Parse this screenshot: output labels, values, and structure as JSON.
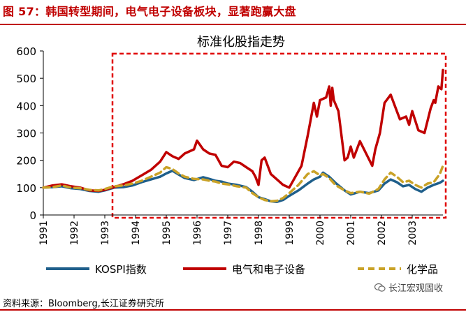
{
  "figure": {
    "caption": "图 57：韩国转型期间，电气电子设备板块，显著跑赢大盘",
    "source": "资料来源：Bloomberg,长江证券研究所",
    "watermark": "长江宏观固收"
  },
  "chart_data": {
    "type": "line",
    "title": "标准化股指走势",
    "xlabel": "",
    "ylabel": "",
    "ylim": [
      0,
      600
    ],
    "yticks": [
      0,
      100,
      200,
      300,
      400,
      500,
      600
    ],
    "xlim": [
      1991,
      2004
    ],
    "xticks": [
      "1991",
      "1992",
      "1993",
      "1994",
      "1995",
      "1996",
      "1997",
      "1998",
      "1999",
      "2000",
      "2001",
      "2002",
      "2003"
    ],
    "grid": false,
    "legend_position": "bottom",
    "highlight_box": {
      "x_range": [
        1993.25,
        2004
      ],
      "y_range": [
        0,
        590
      ],
      "color": "#e00000",
      "style": "dashed"
    },
    "series": [
      {
        "name": "KOSPI指数",
        "color": "#1f5f8b",
        "style": "solid",
        "points": [
          [
            1991.0,
            100
          ],
          [
            1991.3,
            102
          ],
          [
            1991.6,
            105
          ],
          [
            1991.9,
            98
          ],
          [
            1992.2,
            95
          ],
          [
            1992.5,
            88
          ],
          [
            1992.8,
            85
          ],
          [
            1993.0,
            90
          ],
          [
            1993.3,
            100
          ],
          [
            1993.6,
            102
          ],
          [
            1993.9,
            108
          ],
          [
            1994.2,
            120
          ],
          [
            1994.5,
            130
          ],
          [
            1994.8,
            140
          ],
          [
            1995.0,
            152
          ],
          [
            1995.2,
            162
          ],
          [
            1995.4,
            148
          ],
          [
            1995.6,
            135
          ],
          [
            1995.9,
            128
          ],
          [
            1996.2,
            138
          ],
          [
            1996.4,
            132
          ],
          [
            1996.6,
            125
          ],
          [
            1996.8,
            122
          ],
          [
            1997.0,
            115
          ],
          [
            1997.3,
            110
          ],
          [
            1997.6,
            102
          ],
          [
            1997.8,
            85
          ],
          [
            1998.0,
            65
          ],
          [
            1998.2,
            58
          ],
          [
            1998.4,
            50
          ],
          [
            1998.6,
            48
          ],
          [
            1998.8,
            55
          ],
          [
            1999.0,
            70
          ],
          [
            1999.3,
            90
          ],
          [
            1999.6,
            115
          ],
          [
            1999.8,
            130
          ],
          [
            2000.0,
            140
          ],
          [
            2000.1,
            155
          ],
          [
            2000.3,
            140
          ],
          [
            2000.5,
            118
          ],
          [
            2000.8,
            90
          ],
          [
            2001.0,
            75
          ],
          [
            2001.3,
            85
          ],
          [
            2001.6,
            80
          ],
          [
            2001.9,
            90
          ],
          [
            2002.1,
            115
          ],
          [
            2002.3,
            130
          ],
          [
            2002.5,
            120
          ],
          [
            2002.7,
            105
          ],
          [
            2002.9,
            110
          ],
          [
            2003.1,
            95
          ],
          [
            2003.3,
            85
          ],
          [
            2003.5,
            100
          ],
          [
            2003.7,
            110
          ],
          [
            2003.9,
            118
          ],
          [
            2004.0,
            125
          ]
        ]
      },
      {
        "name": "电气和电子设备",
        "color": "#c00000",
        "style": "solid",
        "points": [
          [
            1991.0,
            100
          ],
          [
            1991.3,
            108
          ],
          [
            1991.6,
            112
          ],
          [
            1991.9,
            105
          ],
          [
            1992.2,
            100
          ],
          [
            1992.5,
            90
          ],
          [
            1992.8,
            88
          ],
          [
            1993.0,
            92
          ],
          [
            1993.3,
            102
          ],
          [
            1993.6,
            112
          ],
          [
            1993.9,
            125
          ],
          [
            1994.2,
            145
          ],
          [
            1994.5,
            165
          ],
          [
            1994.8,
            195
          ],
          [
            1995.0,
            230
          ],
          [
            1995.2,
            215
          ],
          [
            1995.4,
            205
          ],
          [
            1995.6,
            225
          ],
          [
            1995.9,
            240
          ],
          [
            1996.0,
            272
          ],
          [
            1996.2,
            240
          ],
          [
            1996.4,
            225
          ],
          [
            1996.6,
            220
          ],
          [
            1996.8,
            180
          ],
          [
            1997.0,
            175
          ],
          [
            1997.2,
            195
          ],
          [
            1997.4,
            190
          ],
          [
            1997.6,
            175
          ],
          [
            1997.8,
            160
          ],
          [
            1997.9,
            140
          ],
          [
            1998.0,
            110
          ],
          [
            1998.1,
            200
          ],
          [
            1998.2,
            210
          ],
          [
            1998.4,
            150
          ],
          [
            1998.6,
            130
          ],
          [
            1998.8,
            110
          ],
          [
            1999.0,
            100
          ],
          [
            1999.2,
            140
          ],
          [
            1999.4,
            180
          ],
          [
            1999.6,
            290
          ],
          [
            1999.8,
            410
          ],
          [
            1999.9,
            360
          ],
          [
            2000.0,
            420
          ],
          [
            2000.2,
            430
          ],
          [
            2000.3,
            470
          ],
          [
            2000.35,
            400
          ],
          [
            2000.4,
            465
          ],
          [
            2000.45,
            420
          ],
          [
            2000.6,
            380
          ],
          [
            2000.8,
            200
          ],
          [
            2000.9,
            210
          ],
          [
            2001.0,
            250
          ],
          [
            2001.1,
            210
          ],
          [
            2001.3,
            270
          ],
          [
            2001.5,
            225
          ],
          [
            2001.7,
            180
          ],
          [
            2001.8,
            240
          ],
          [
            2001.95,
            300
          ],
          [
            2002.1,
            410
          ],
          [
            2002.3,
            440
          ],
          [
            2002.5,
            380
          ],
          [
            2002.6,
            350
          ],
          [
            2002.8,
            360
          ],
          [
            2002.9,
            330
          ],
          [
            2003.0,
            380
          ],
          [
            2003.2,
            310
          ],
          [
            2003.4,
            300
          ],
          [
            2003.6,
            390
          ],
          [
            2003.7,
            420
          ],
          [
            2003.75,
            410
          ],
          [
            2003.85,
            470
          ],
          [
            2003.95,
            460
          ],
          [
            2004.0,
            530
          ]
        ]
      },
      {
        "name": "化学品",
        "color": "#c9a227",
        "style": "dashed",
        "points": [
          [
            1991.0,
            100
          ],
          [
            1991.3,
            102
          ],
          [
            1991.6,
            108
          ],
          [
            1991.9,
            100
          ],
          [
            1992.2,
            98
          ],
          [
            1992.5,
            92
          ],
          [
            1992.8,
            90
          ],
          [
            1993.0,
            95
          ],
          [
            1993.3,
            105
          ],
          [
            1993.6,
            108
          ],
          [
            1993.9,
            115
          ],
          [
            1994.2,
            125
          ],
          [
            1994.5,
            140
          ],
          [
            1994.8,
            155
          ],
          [
            1995.0,
            175
          ],
          [
            1995.2,
            168
          ],
          [
            1995.4,
            152
          ],
          [
            1995.6,
            140
          ],
          [
            1995.9,
            132
          ],
          [
            1996.2,
            130
          ],
          [
            1996.4,
            125
          ],
          [
            1996.6,
            122
          ],
          [
            1996.8,
            115
          ],
          [
            1997.0,
            112
          ],
          [
            1997.3,
            105
          ],
          [
            1997.6,
            100
          ],
          [
            1997.8,
            80
          ],
          [
            1998.0,
            65
          ],
          [
            1998.2,
            55
          ],
          [
            1998.4,
            50
          ],
          [
            1998.6,
            52
          ],
          [
            1998.8,
            62
          ],
          [
            1999.0,
            80
          ],
          [
            1999.3,
            110
          ],
          [
            1999.6,
            150
          ],
          [
            1999.8,
            160
          ],
          [
            2000.0,
            145
          ],
          [
            2000.1,
            150
          ],
          [
            2000.3,
            135
          ],
          [
            2000.5,
            110
          ],
          [
            2000.8,
            90
          ],
          [
            2001.0,
            80
          ],
          [
            2001.3,
            85
          ],
          [
            2001.6,
            78
          ],
          [
            2001.9,
            95
          ],
          [
            2002.1,
            130
          ],
          [
            2002.3,
            155
          ],
          [
            2002.5,
            140
          ],
          [
            2002.7,
            120
          ],
          [
            2002.9,
            125
          ],
          [
            2003.1,
            110
          ],
          [
            2003.3,
            100
          ],
          [
            2003.5,
            115
          ],
          [
            2003.7,
            120
          ],
          [
            2003.9,
            150
          ],
          [
            2004.0,
            180
          ]
        ]
      }
    ]
  }
}
